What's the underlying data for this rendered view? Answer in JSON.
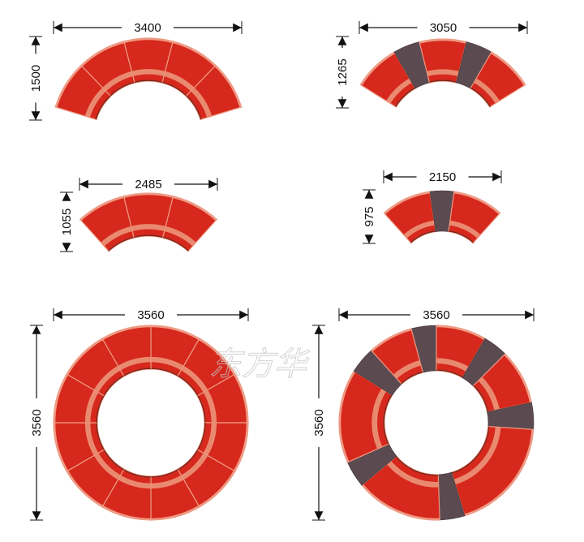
{
  "colors": {
    "module_red": "#d6281c",
    "seat_stripe": "#e98a70",
    "edge_highlight": "#ee9a84",
    "module_gray": "#5b4b50",
    "dimension_line": "#111111"
  },
  "watermark": "东方华",
  "layouts": [
    {
      "name": "five-module-arc",
      "width_label": "3400",
      "depth_label": "1500"
    },
    {
      "name": "arc-with-gray-wedges",
      "width_label": "3050",
      "depth_label": "1265"
    },
    {
      "name": "three-module-arc",
      "width_label": "2485",
      "depth_label": "1055"
    },
    {
      "name": "two-module-arc-with-wedge",
      "width_label": "2150",
      "depth_label": "975"
    },
    {
      "name": "full-circle",
      "width_label": "3560",
      "depth_label": "3560"
    },
    {
      "name": "full-circle-with-wedges",
      "width_label": "3560",
      "depth_label": "3560"
    }
  ]
}
